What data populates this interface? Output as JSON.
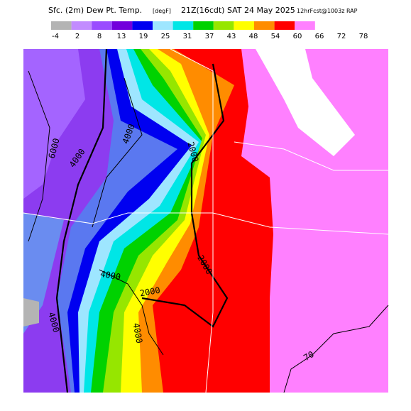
{
  "header": {
    "parts": [
      "Sfc. (2m) Dew Pt. Temp.",
      "[degF]",
      "21Z(16cdt) SAT 24 May 2025",
      "12hrFcst@1003z RAP"
    ]
  },
  "colorbar": {
    "colors": [
      "#b4b4b4",
      "#c28cff",
      "#9a4cff",
      "#7200dc",
      "#0000f0",
      "#9ee6ff",
      "#00e6e6",
      "#00d200",
      "#96e600",
      "#ffff00",
      "#ff8c00",
      "#ff0000",
      "#ff80ff"
    ],
    "labels": [
      -4,
      2,
      8,
      13,
      19,
      25,
      31,
      37,
      43,
      48,
      54,
      60,
      66,
      72,
      78
    ]
  },
  "contour_labels": [
    "6000",
    "4000",
    "4000",
    "2000",
    "2000",
    "4000",
    "2000",
    "4000",
    "4000",
    "70"
  ]
}
